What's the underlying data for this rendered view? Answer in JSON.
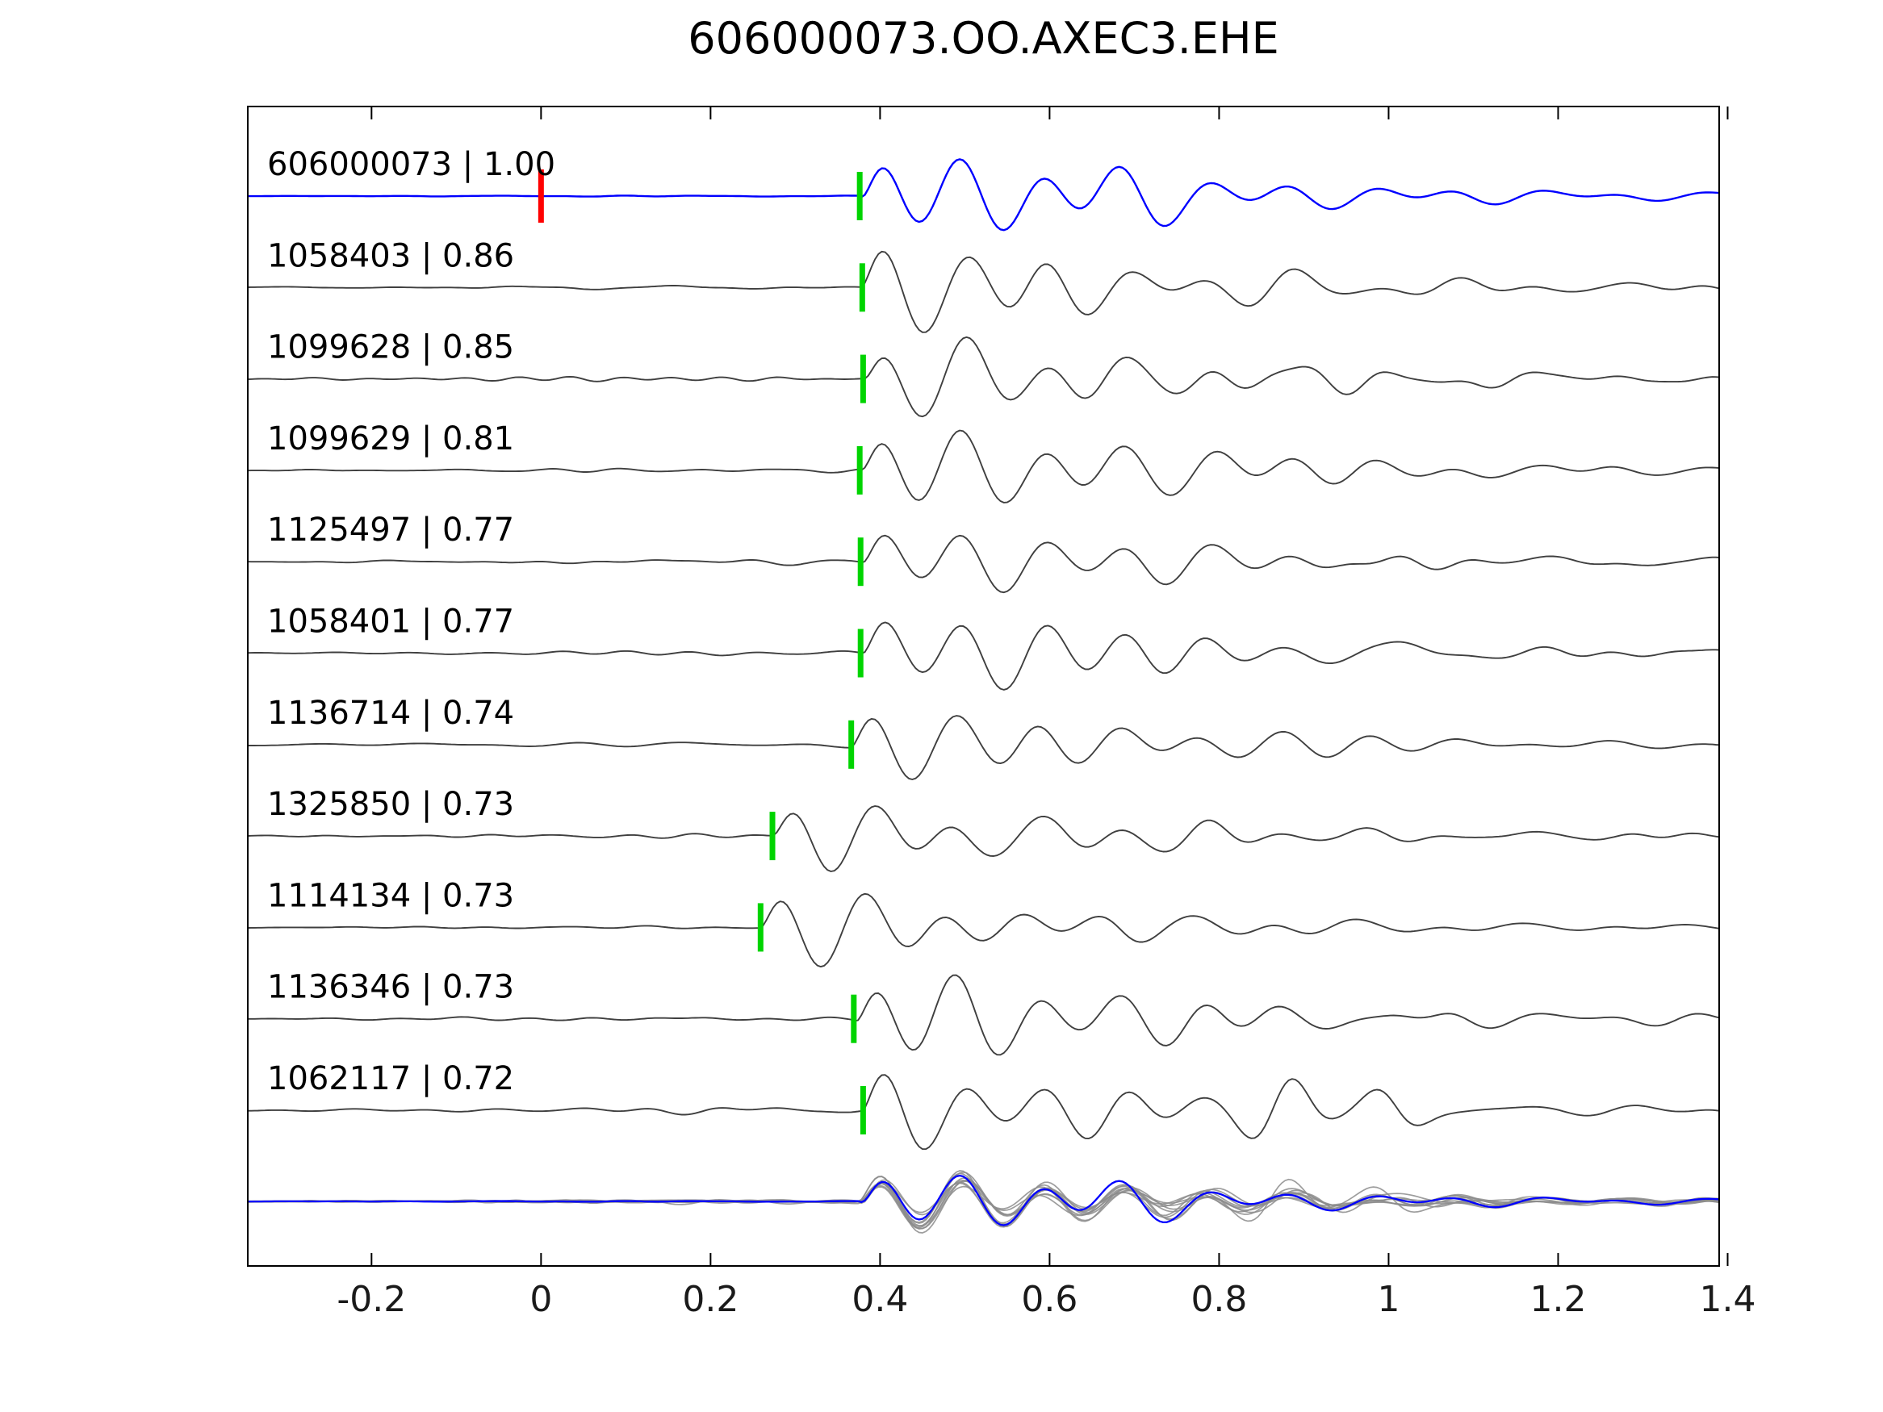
{
  "title": "606000073.OO.AXEC3.EHE",
  "colors": {
    "template_trace": "#0000ff",
    "match_trace": "#3f3f3f",
    "pick_marker": "#00d400",
    "template_marker": "#ff0000",
    "stack_trace": "#8c8c8c",
    "axis": "#000000",
    "tick_label": "#1a1a1a",
    "trace_label": "#000000"
  },
  "chart_data": {
    "type": "line",
    "title": "606000073.OO.AXEC3.EHE",
    "xlabel": "",
    "ylabel": "",
    "xlim": [
      -0.346,
      1.39
    ],
    "x_ticks": [
      -0.2,
      0,
      0.2,
      0.4,
      0.6,
      0.8,
      1,
      1.2,
      1.4
    ],
    "x_tick_labels": [
      "-0.2",
      "0",
      "0.2",
      "0.4",
      "0.6",
      "0.8",
      "1",
      "1.2",
      "1.4"
    ],
    "grid": false,
    "legend": null,
    "traces": [
      {
        "id": "606000073",
        "correlation": 1.0,
        "label": "606000073 | 1.00",
        "pick_time": 0.376,
        "template_origin_time": 0.0,
        "is_template": true
      },
      {
        "id": "1058403",
        "correlation": 0.86,
        "label": "1058403 | 0.86",
        "pick_time": 0.379,
        "is_template": false
      },
      {
        "id": "1099628",
        "correlation": 0.85,
        "label": "1099628 | 0.85",
        "pick_time": 0.38,
        "is_template": false
      },
      {
        "id": "1099629",
        "correlation": 0.81,
        "label": "1099629 | 0.81",
        "pick_time": 0.376,
        "is_template": false
      },
      {
        "id": "1125497",
        "correlation": 0.77,
        "label": "1125497 | 0.77",
        "pick_time": 0.377,
        "is_template": false
      },
      {
        "id": "1058401",
        "correlation": 0.77,
        "label": "1058401 | 0.77",
        "pick_time": 0.377,
        "is_template": false
      },
      {
        "id": "1136714",
        "correlation": 0.74,
        "label": "1136714 | 0.74",
        "pick_time": 0.366,
        "is_template": false
      },
      {
        "id": "1325850",
        "correlation": 0.73,
        "label": "1325850 | 0.73",
        "pick_time": 0.273,
        "is_template": false
      },
      {
        "id": "1114134",
        "correlation": 0.73,
        "label": "1114134 | 0.73",
        "pick_time": 0.259,
        "is_template": false
      },
      {
        "id": "1136346",
        "correlation": 0.73,
        "label": "1136346 | 0.73",
        "pick_time": 0.369,
        "is_template": false
      },
      {
        "id": "1062117",
        "correlation": 0.72,
        "label": "1062117 | 0.72",
        "pick_time": 0.38,
        "is_template": false
      }
    ],
    "stack_row": {
      "present": true,
      "align_time": 0.376,
      "includes_template": true
    }
  }
}
